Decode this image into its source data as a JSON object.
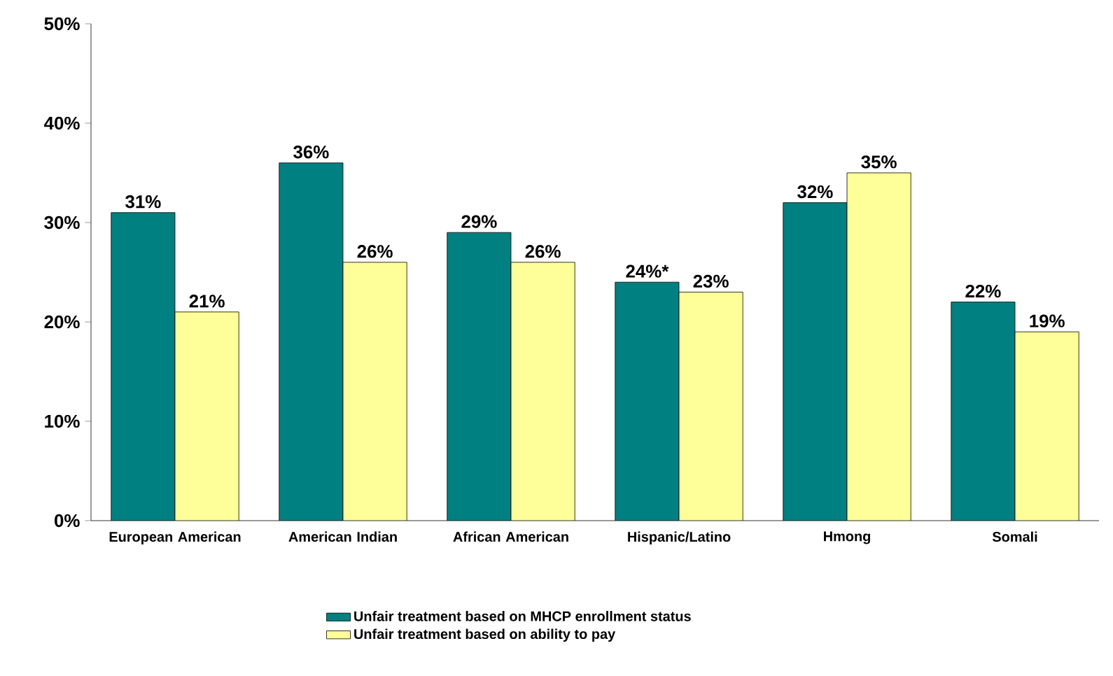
{
  "chart_data": {
    "type": "bar",
    "categories": [
      "European American",
      "American Indian",
      "African American",
      "Hispanic/Latino",
      "Hmong",
      "Somali"
    ],
    "series": [
      {
        "name": "Unfair treatment based on MHCP enrollment status",
        "color": "#008080",
        "values": [
          31,
          36,
          29,
          24,
          32,
          22
        ],
        "value_labels": [
          "31%",
          "36%",
          "29%",
          "24%*",
          "32%",
          "22%"
        ]
      },
      {
        "name": "Unfair treatment based on ability to pay",
        "color": "#ffff99",
        "values": [
          21,
          26,
          26,
          23,
          35,
          19
        ],
        "value_labels": [
          "21%",
          "26%",
          "26%",
          "23%",
          "35%",
          "19%"
        ]
      }
    ],
    "ylim": [
      0,
      50
    ],
    "yticks": [
      {
        "value": 0,
        "label": "0%"
      },
      {
        "value": 10,
        "label": "10%"
      },
      {
        "value": 20,
        "label": "20%"
      },
      {
        "value": 30,
        "label": "30%"
      },
      {
        "value": 40,
        "label": "40%"
      },
      {
        "value": 50,
        "label": "50%"
      }
    ],
    "grid": false,
    "legend": "bottom"
  }
}
